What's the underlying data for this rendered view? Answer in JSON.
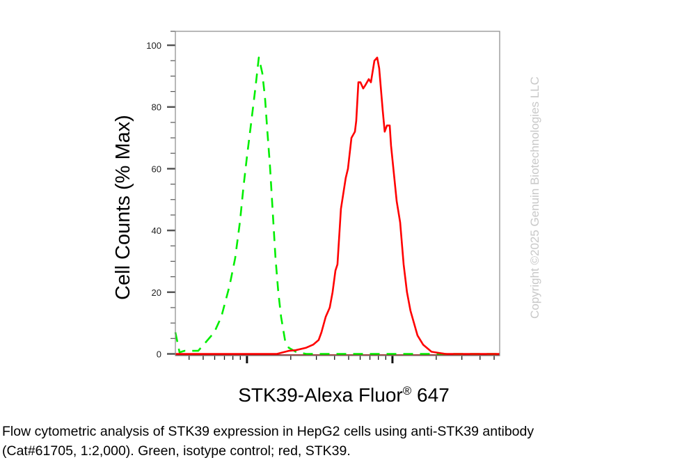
{
  "chart_data": {
    "type": "line",
    "title": "",
    "xlabel": "STK39-Alexa Fluor",
    "xlabel_superscript": "®",
    "xlabel_suffix": " 647",
    "ylabel": "Cell Counts (% Max)",
    "xscale": "log",
    "xlim": [
      322,
      54580
    ],
    "ylim": [
      0,
      105
    ],
    "yticks": [
      0,
      20,
      40,
      60,
      80,
      100
    ],
    "ytick_labels": [
      "0",
      "20",
      "40",
      "60",
      "80",
      "100"
    ],
    "grid": false,
    "legend": "none",
    "series": [
      {
        "color": "#00ee00",
        "style": "dashed",
        "x": [
          322,
          344,
          371,
          462,
          517,
          596,
          666,
          759,
          829,
          896,
          946,
          1000,
          1057,
          1141,
          1206,
          1274,
          1331,
          1376,
          1439,
          1503,
          1571,
          1642,
          1715,
          1833,
          1936,
          2162,
          2553,
          54580
        ],
        "y": [
          7,
          0.5,
          1,
          1,
          3.6,
          7,
          12,
          22,
          31,
          43,
          54,
          64,
          73,
          86,
          96,
          91,
          83,
          73,
          61,
          46,
          31,
          20,
          12,
          4,
          2,
          0.7,
          0,
          0
        ]
      },
      {
        "color": "#ff0000",
        "style": "solid",
        "x": [
          322,
          1607,
          1936,
          2163,
          2553,
          2851,
          3112,
          3252,
          3475,
          3707,
          3879,
          4055,
          4188,
          4426,
          4775,
          4943,
          5224,
          5521,
          5636,
          5834,
          6026,
          6295,
          6501,
          6871,
          7112,
          7516,
          7854,
          8110,
          8570,
          8851,
          9162,
          9572,
          9775,
          10690,
          11300,
          11940,
          12590,
          13300,
          14860,
          16250,
          18540,
          23120,
          54580
        ],
        "y": [
          0,
          0,
          1,
          1.2,
          2,
          3,
          4.5,
          7,
          12,
          15,
          20,
          27,
          29,
          47,
          57,
          60,
          70,
          72,
          75.5,
          88,
          88,
          86,
          87,
          89,
          88,
          95,
          96,
          92.5,
          79,
          72,
          74,
          74,
          67.5,
          49.5,
          42.6,
          29,
          20,
          14,
          6,
          3,
          0.7,
          0,
          0
        ]
      }
    ]
  },
  "watermark": "Copyright ©2025 Genuin Biotechnologies LLC",
  "caption": {
    "line1": "Flow cytometric analysis of STK39 expression in HepG2 cells using anti-STK39 antibody",
    "line2": "(Cat#61705, 1:2,000). Green, isotype control; red, STK39."
  }
}
